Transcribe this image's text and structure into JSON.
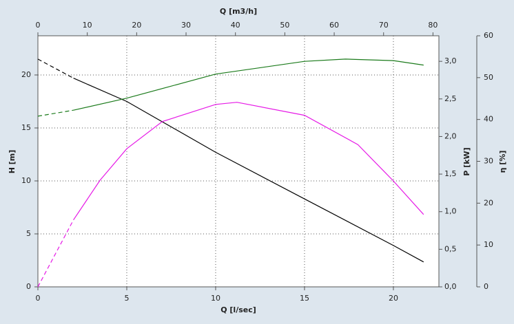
{
  "chart_data": {
    "type": "line",
    "xlabel": "Q [l/sec]",
    "x2label": "Q [m3/h]",
    "ylabel": "H [m]",
    "y2label": "P [kW]",
    "y3label": "η [%]",
    "xlim": [
      0,
      22.56
    ],
    "xticks": [
      0,
      5,
      10,
      15,
      20
    ],
    "x2lim": [
      0,
      81.2
    ],
    "x2ticks": [
      0,
      10,
      20,
      30,
      40,
      50,
      60,
      70,
      80
    ],
    "ylim": [
      0,
      23.7
    ],
    "yticks": [
      0,
      5,
      10,
      15,
      20
    ],
    "y2lim": [
      0,
      3.34
    ],
    "y2ticks": [
      {
        "value": 0,
        "label": "0,0"
      },
      {
        "value": 0.5,
        "label": "0,5"
      },
      {
        "value": 1,
        "label": "1,0"
      },
      {
        "value": 1.5,
        "label": "1,5"
      },
      {
        "value": 2,
        "label": "2,0"
      },
      {
        "value": 2.5,
        "label": "2,5"
      },
      {
        "value": 3,
        "label": "3,0"
      }
    ],
    "y3lim": [
      0,
      60
    ],
    "y3ticks": [
      0,
      10,
      20,
      30,
      40,
      50,
      60
    ],
    "grid": true,
    "dashed_until": 2,
    "series": [
      {
        "color": "#000000",
        "axis": "y",
        "x": [
          0,
          2,
          5,
          10,
          15,
          20,
          21.7
        ],
        "values": [
          21.5,
          19.7,
          17.5,
          12.7,
          8.3,
          3.9,
          2.35
        ]
      },
      {
        "color": "#1a7a1a",
        "axis": "y2",
        "x": [
          0,
          2,
          5,
          10,
          15,
          17.3,
          20,
          21.7
        ],
        "values": [
          2.27,
          2.35,
          2.51,
          2.83,
          3.0,
          3.03,
          3.01,
          2.95
        ]
      },
      {
        "color": "#e619e6",
        "axis": "y3",
        "x": [
          0,
          2,
          3.5,
          5,
          7,
          10,
          11.2,
          15,
          18,
          20,
          21.7
        ],
        "values": [
          0,
          16,
          25.5,
          33,
          39.5,
          43.6,
          44.1,
          41,
          34,
          25.3,
          17.3
        ]
      }
    ]
  }
}
